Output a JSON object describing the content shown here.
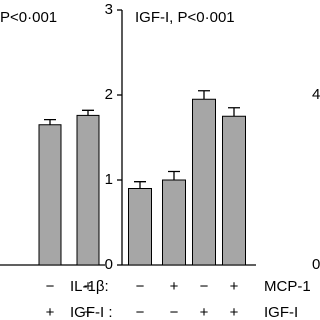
{
  "chart_data": [
    {
      "type": "bar",
      "title": "P<0·001",
      "values": [
        1.65,
        1.76
      ],
      "errors": [
        0.06,
        0.06
      ],
      "color": "#a6a6a6",
      "ylim": [
        0,
        3
      ],
      "factors": [
        {
          "levels": [
            "−",
            "+"
          ]
        },
        {
          "levels": [
            "+",
            "+"
          ]
        }
      ]
    },
    {
      "type": "bar",
      "title": "IGF-I, P<0·001",
      "values": [
        0.9,
        1.0,
        1.95,
        1.75
      ],
      "errors": [
        0.08,
        0.1,
        0.1,
        0.1
      ],
      "color": "#a6a6a6",
      "ylim": [
        0,
        3
      ],
      "yticks": [
        0,
        1,
        2,
        3
      ],
      "factors": [
        {
          "name": "IL-1β:",
          "levels": [
            "−",
            "+",
            "−",
            "+"
          ]
        },
        {
          "name": "IGF-I :",
          "levels": [
            "−",
            "−",
            "+",
            "+"
          ]
        }
      ]
    },
    {
      "type": "axis",
      "ylim": [
        0,
        6
      ],
      "yticks": [
        0,
        4
      ],
      "factors": [
        {
          "name": "MCP-1"
        },
        {
          "name": "IGF-I"
        }
      ]
    }
  ]
}
